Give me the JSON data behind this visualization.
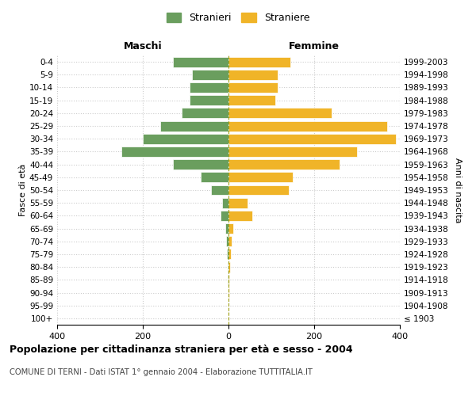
{
  "age_groups": [
    "100+",
    "95-99",
    "90-94",
    "85-89",
    "80-84",
    "75-79",
    "70-74",
    "65-69",
    "60-64",
    "55-59",
    "50-54",
    "45-49",
    "40-44",
    "35-39",
    "30-34",
    "25-29",
    "20-24",
    "15-19",
    "10-14",
    "5-9",
    "0-4"
  ],
  "birth_years": [
    "≤ 1903",
    "1904-1908",
    "1909-1913",
    "1914-1918",
    "1919-1923",
    "1924-1928",
    "1929-1933",
    "1934-1938",
    "1939-1943",
    "1944-1948",
    "1949-1953",
    "1954-1958",
    "1959-1963",
    "1964-1968",
    "1969-1973",
    "1974-1978",
    "1979-1983",
    "1984-1988",
    "1989-1993",
    "1994-1998",
    "1999-2003"
  ],
  "males": [
    0,
    0,
    0,
    1,
    2,
    3,
    5,
    7,
    18,
    15,
    40,
    65,
    130,
    250,
    200,
    160,
    110,
    90,
    90,
    85,
    130
  ],
  "females": [
    0,
    0,
    1,
    2,
    3,
    5,
    8,
    12,
    55,
    45,
    140,
    150,
    260,
    300,
    390,
    370,
    240,
    110,
    115,
    115,
    145
  ],
  "male_color": "#6a9e5e",
  "female_color": "#f0b428",
  "background_color": "#ffffff",
  "grid_color": "#cccccc",
  "title": "Popolazione per cittadinanza straniera per età e sesso - 2004",
  "subtitle": "COMUNE DI TERNI - Dati ISTAT 1° gennaio 2004 - Elaborazione TUTTITALIA.IT",
  "xlabel_left": "Maschi",
  "xlabel_right": "Femmine",
  "ylabel_left": "Fasce di età",
  "ylabel_right": "Anni di nascita",
  "legend_male": "Stranieri",
  "legend_female": "Straniere",
  "xlim": 400,
  "center_line_color": "#999900"
}
